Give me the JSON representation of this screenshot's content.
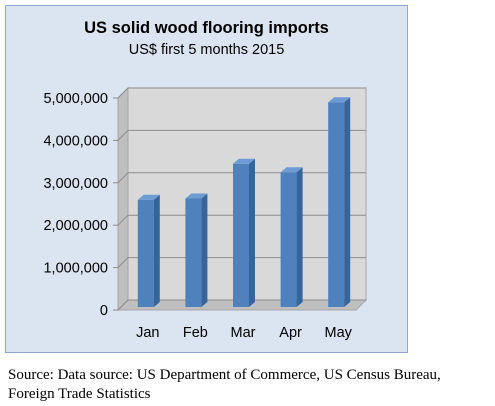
{
  "chart_data": {
    "type": "bar",
    "title": "US solid wood flooring imports",
    "subtitle": "US$ first 5 months 2015",
    "categories": [
      "Jan",
      "Feb",
      "Mar",
      "Apr",
      "May"
    ],
    "values": [
      2600000,
      2630000,
      3450000,
      3250000,
      4900000
    ],
    "ylim": [
      0,
      5000000
    ],
    "yticks": [
      "0",
      "1,000,000",
      "2,000,000",
      "3,000,000",
      "4,000,000",
      "5,000,000"
    ],
    "ytick_values": [
      0,
      1000000,
      2000000,
      3000000,
      4000000,
      5000000
    ],
    "grid": true,
    "style": "3d-column",
    "colors": {
      "bar": "#4f81bd",
      "bar_top": "#6f9bd4",
      "bar_side": "#34659c",
      "frame_bg": "#dbe5f1",
      "plot_bg": "#d9d9d9",
      "wall": "#bfbfbf"
    }
  },
  "source": "Source: Data source: US Department of Commerce, US Census Bureau, Foreign Trade Statistics"
}
